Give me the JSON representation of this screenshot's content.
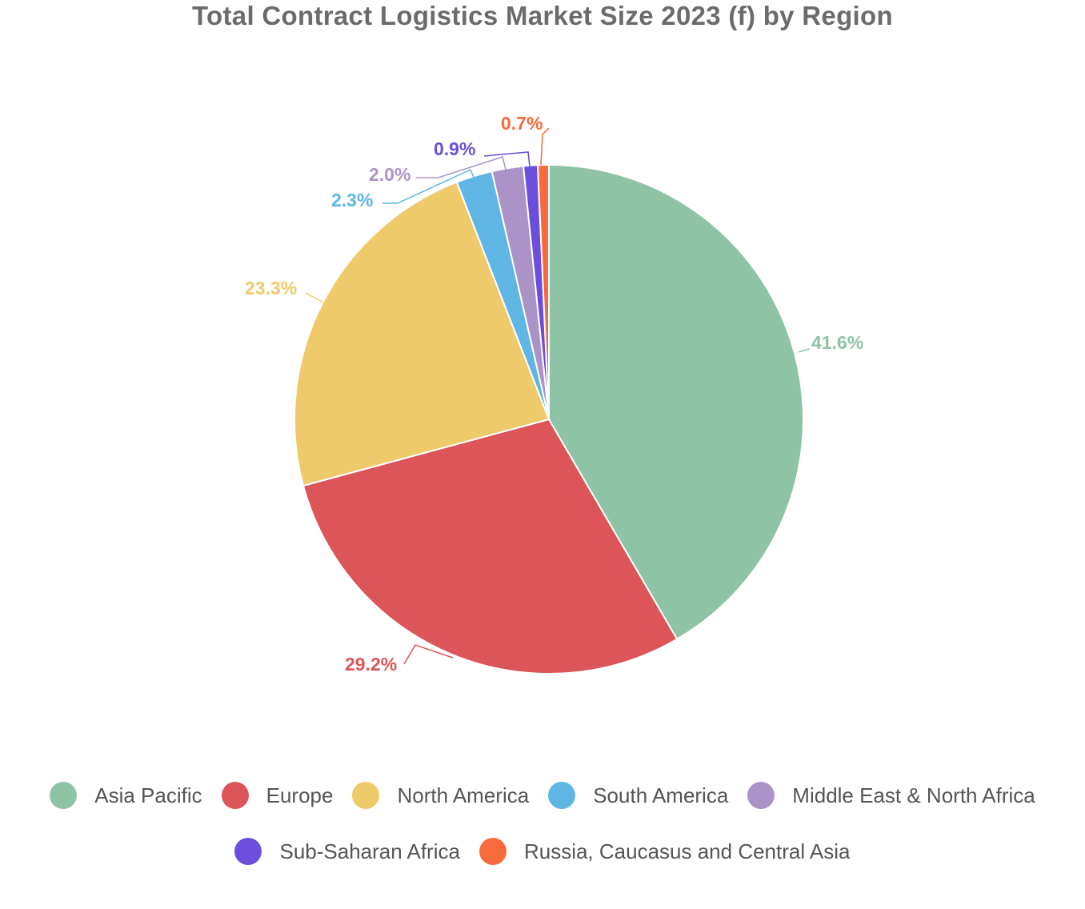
{
  "chart_data": {
    "type": "pie",
    "title": "Total Contract Logistics Market Size 2023 (f) by Region",
    "slices": [
      {
        "name": "Asia Pacific",
        "value": 41.6,
        "label": "41.6%",
        "color": "#8fc3a6"
      },
      {
        "name": "Europe",
        "value": 29.2,
        "label": "29.2%",
        "color": "#dc5558"
      },
      {
        "name": "North America",
        "value": 23.3,
        "label": "23.3%",
        "color": "#efca6a"
      },
      {
        "name": "South America",
        "value": 2.3,
        "label": "2.3%",
        "color": "#5fb5e4"
      },
      {
        "name": "Middle East & North Africa",
        "value": 2.0,
        "label": "2.0%",
        "color": "#ab93c8"
      },
      {
        "name": "Sub-Saharan Africa",
        "value": 0.9,
        "label": "0.9%",
        "color": "#6b4fdc"
      },
      {
        "name": "Russia, Caucasus and Central Asia",
        "value": 0.7,
        "label": "0.7%",
        "color": "#f76a3c"
      }
    ],
    "legend_position": "bottom"
  }
}
